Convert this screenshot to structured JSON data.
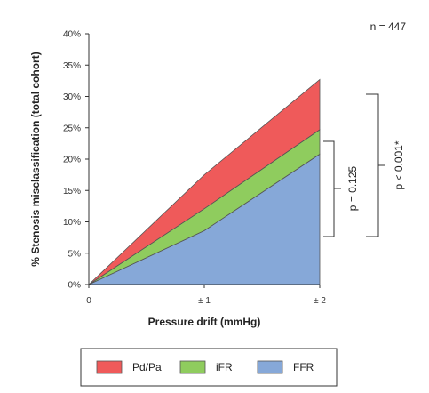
{
  "chart_data": {
    "type": "area",
    "title": "",
    "xlabel": "Pressure drift (mmHg)",
    "ylabel": "% Stenosis misclassification (total cohort)",
    "x": [
      0,
      1,
      2
    ],
    "x_tick_labels": [
      "0",
      "± 1",
      "± 2"
    ],
    "y_ticks": [
      "0%",
      "5%",
      "10%",
      "15%",
      "20%",
      "25%",
      "30%",
      "35%",
      "40%"
    ],
    "ylim": [
      0,
      40
    ],
    "stacked": true,
    "series": [
      {
        "name": "FFR",
        "values": [
          0,
          8.6,
          20.8
        ],
        "color": "#86a8d8"
      },
      {
        "name": "iFR",
        "values": [
          0,
          3.5,
          3.9
        ],
        "color": "#8fcc5e"
      },
      {
        "name": "Pd/Pa",
        "values": [
          0,
          5.4,
          8.0
        ],
        "color": "#ef5a5a"
      }
    ],
    "legend_order": [
      "Pd/Pa",
      "iFR",
      "FFR"
    ],
    "legend_position": "bottom",
    "annotations": {
      "n": "n = 447",
      "p_inner": "p = 0.125",
      "p_outer": "p < 0.001*"
    }
  }
}
